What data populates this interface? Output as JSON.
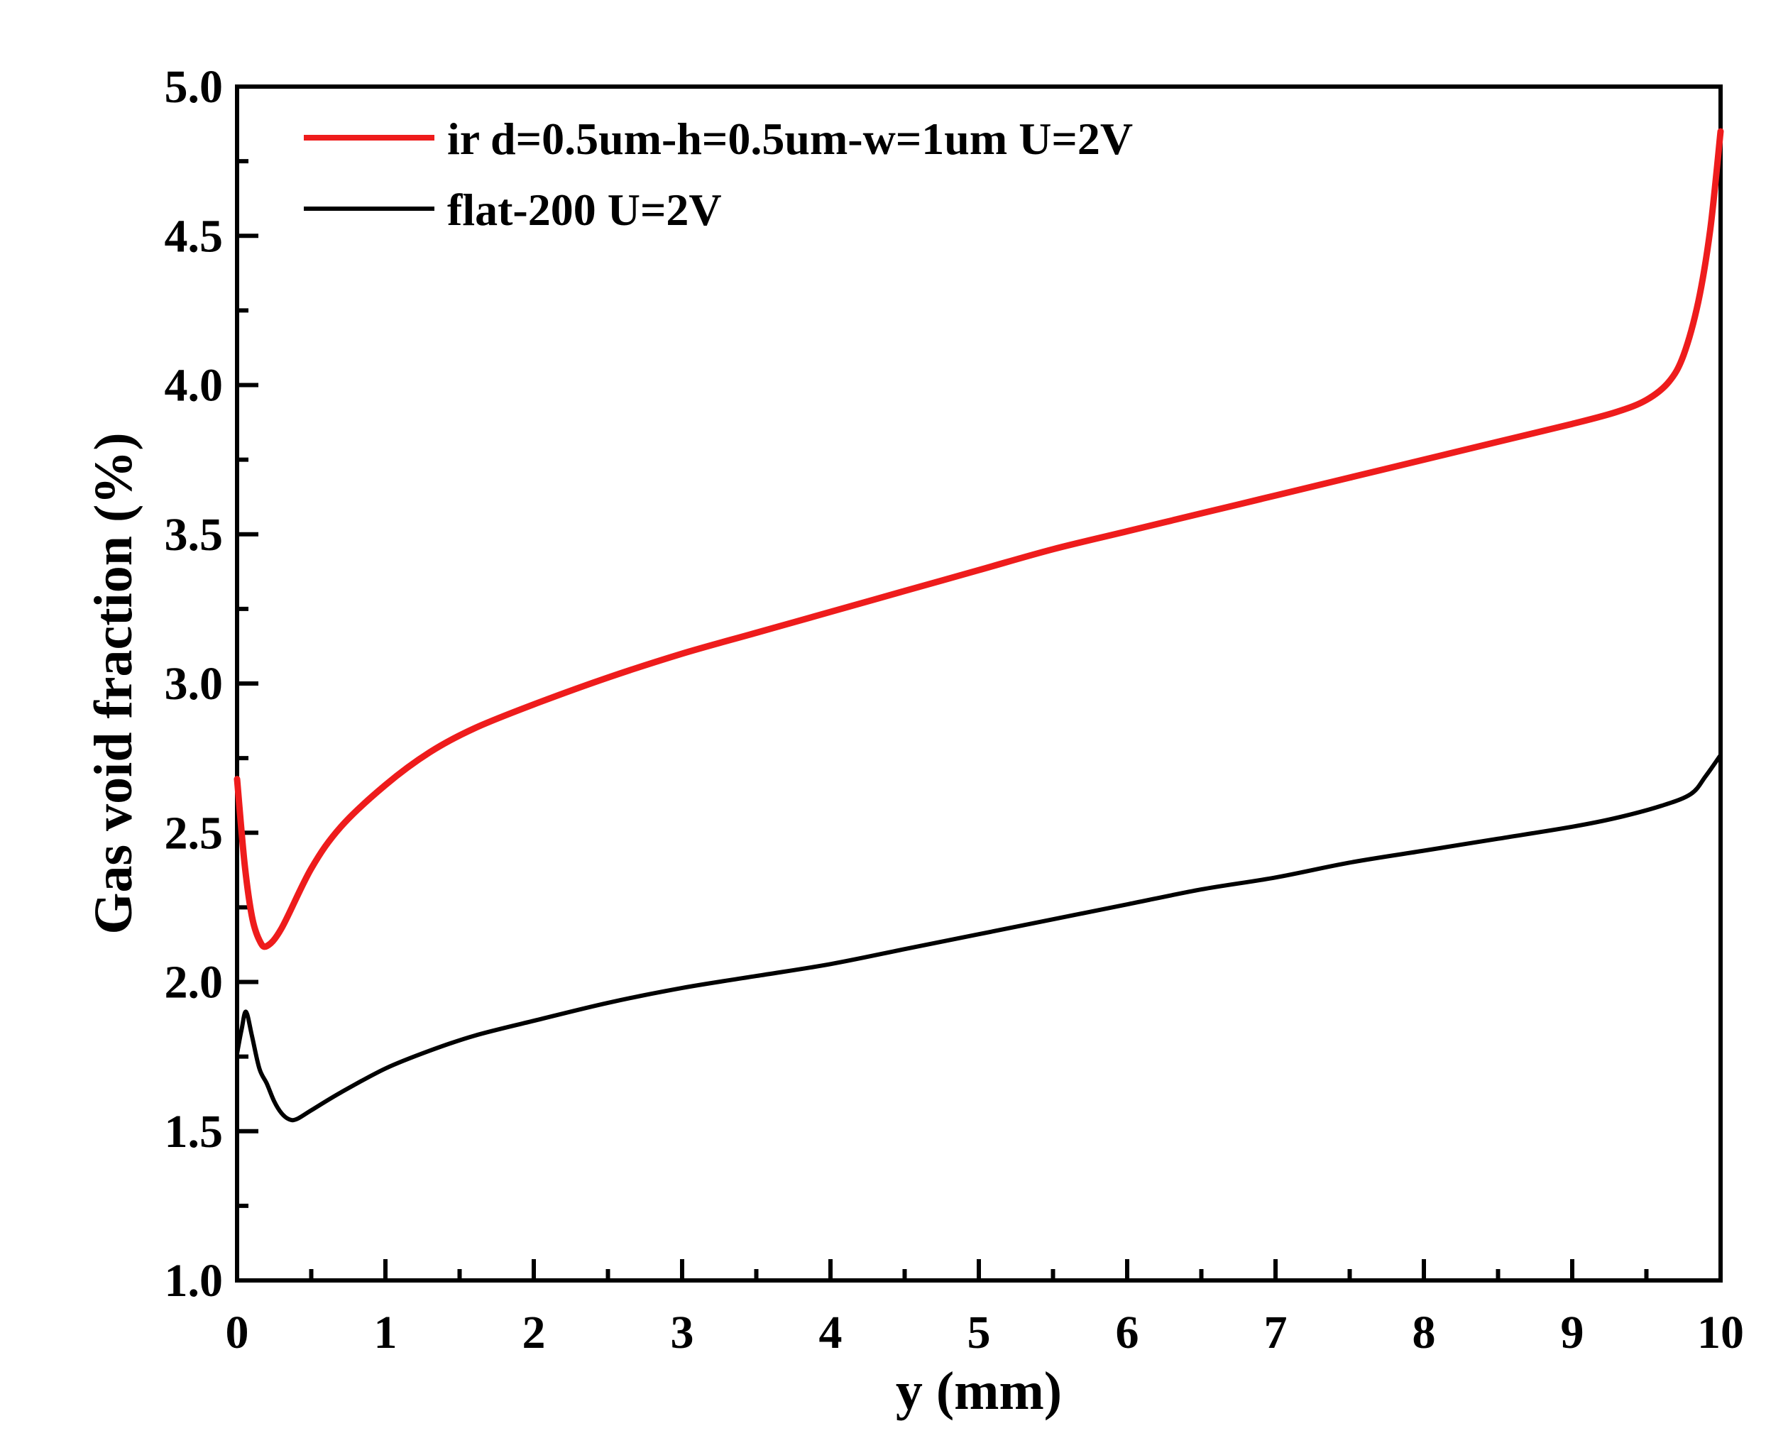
{
  "chart_data": {
    "type": "line",
    "title": "",
    "xlabel": "y (mm)",
    "ylabel": "Gas void fraction (%)",
    "xlim": [
      0,
      10
    ],
    "ylim": [
      1.0,
      5.0
    ],
    "grid": false,
    "legend_position": "top-left",
    "x_ticks": [
      {
        "value": 0,
        "label": "0"
      },
      {
        "value": 1,
        "label": "1"
      },
      {
        "value": 2,
        "label": "2"
      },
      {
        "value": 3,
        "label": "3"
      },
      {
        "value": 4,
        "label": "4"
      },
      {
        "value": 5,
        "label": "5"
      },
      {
        "value": 6,
        "label": "6"
      },
      {
        "value": 7,
        "label": "7"
      },
      {
        "value": 8,
        "label": "8"
      },
      {
        "value": 9,
        "label": "9"
      },
      {
        "value": 10,
        "label": "10"
      }
    ],
    "y_ticks": [
      {
        "value": 1.0,
        "label": "1.0"
      },
      {
        "value": 1.5,
        "label": "1.5"
      },
      {
        "value": 2.0,
        "label": "2.0"
      },
      {
        "value": 2.5,
        "label": "2.5"
      },
      {
        "value": 3.0,
        "label": "3.0"
      },
      {
        "value": 3.5,
        "label": "3.5"
      },
      {
        "value": 4.0,
        "label": "4.0"
      },
      {
        "value": 4.5,
        "label": "4.5"
      },
      {
        "value": 5.0,
        "label": "5.0"
      }
    ],
    "series": [
      {
        "name": "ir d=0.5um-h=0.5um-w=1um U=2V",
        "color": "#ee1c1c",
        "x": [
          0,
          0.05,
          0.1,
          0.15,
          0.2,
          0.3,
          0.5,
          0.7,
          1.0,
          1.3,
          1.6,
          2.0,
          2.5,
          3.0,
          3.5,
          4.0,
          4.5,
          5.0,
          5.5,
          6.0,
          6.5,
          7.0,
          7.5,
          8.0,
          8.5,
          9.0,
          9.3,
          9.5,
          9.65,
          9.75,
          9.85,
          9.93,
          10.0
        ],
        "y": [
          2.68,
          2.4,
          2.22,
          2.14,
          2.12,
          2.18,
          2.38,
          2.52,
          2.66,
          2.77,
          2.85,
          2.93,
          3.02,
          3.1,
          3.17,
          3.24,
          3.31,
          3.38,
          3.45,
          3.51,
          3.57,
          3.63,
          3.69,
          3.75,
          3.81,
          3.87,
          3.91,
          3.95,
          4.01,
          4.1,
          4.28,
          4.52,
          4.85
        ]
      },
      {
        "name": "flat-200 U=2V",
        "color": "#000000",
        "x": [
          0,
          0.03,
          0.06,
          0.1,
          0.15,
          0.2,
          0.25,
          0.3,
          0.35,
          0.4,
          0.5,
          0.7,
          1.0,
          1.3,
          1.6,
          2.0,
          2.5,
          3.0,
          3.5,
          4.0,
          4.5,
          5.0,
          5.5,
          6.0,
          6.5,
          7.0,
          7.5,
          8.0,
          8.5,
          9.0,
          9.3,
          9.6,
          9.8,
          9.9,
          10.0
        ],
        "y": [
          1.76,
          1.84,
          1.9,
          1.82,
          1.71,
          1.66,
          1.6,
          1.56,
          1.54,
          1.54,
          1.57,
          1.63,
          1.71,
          1.77,
          1.82,
          1.87,
          1.93,
          1.98,
          2.02,
          2.06,
          2.11,
          2.16,
          2.21,
          2.26,
          2.31,
          2.35,
          2.4,
          2.44,
          2.48,
          2.52,
          2.55,
          2.59,
          2.63,
          2.69,
          2.76
        ]
      }
    ]
  }
}
